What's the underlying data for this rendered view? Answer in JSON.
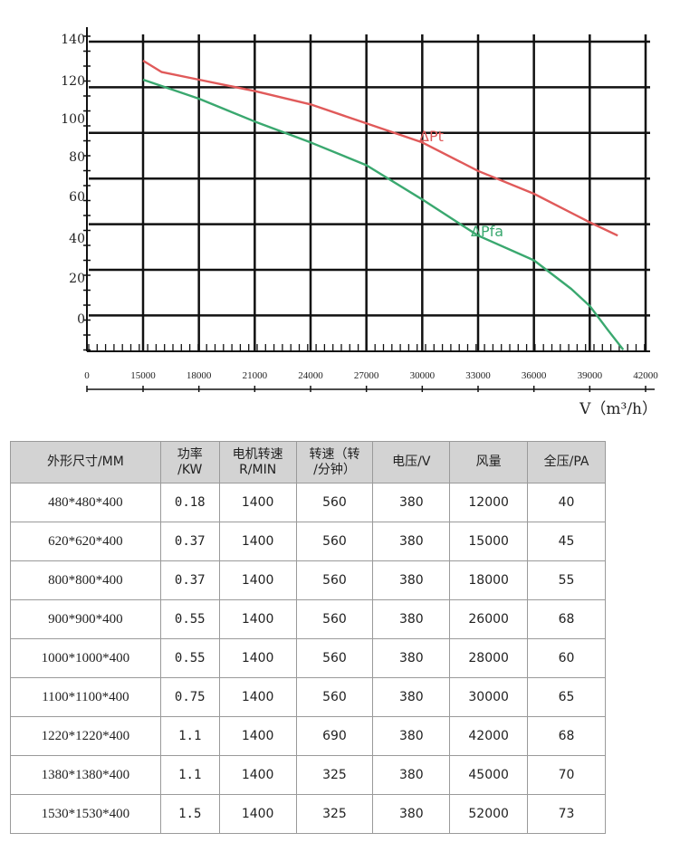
{
  "chart_data": {
    "type": "line",
    "xlabel": "V（m³/h）",
    "x_ticks": [
      "0",
      "15000",
      "18000",
      "21000",
      "24000",
      "27000",
      "30000",
      "33000",
      "36000",
      "39000",
      "42000"
    ],
    "y_ticks": [
      "140",
      "120",
      "100",
      "80",
      "60",
      "40",
      "20",
      "0"
    ],
    "series": [
      {
        "name": "ΔPt",
        "color": "#e05a5a",
        "points": [
          [
            15000,
            130
          ],
          [
            16000,
            124
          ],
          [
            18000,
            120
          ],
          [
            21000,
            114
          ],
          [
            24000,
            107
          ],
          [
            27000,
            97
          ],
          [
            30000,
            87
          ],
          [
            33000,
            72
          ],
          [
            36000,
            60
          ],
          [
            39000,
            45
          ],
          [
            40500,
            38
          ]
        ]
      },
      {
        "name": "ΔPfa",
        "color": "#3aa86f",
        "points": [
          [
            15000,
            120
          ],
          [
            18000,
            110
          ],
          [
            21000,
            98
          ],
          [
            24000,
            87
          ],
          [
            27000,
            75
          ],
          [
            30000,
            57
          ],
          [
            33000,
            38
          ],
          [
            36000,
            25
          ],
          [
            38000,
            10
          ],
          [
            39000,
            1
          ],
          [
            40000,
            -12
          ],
          [
            40800,
            -22
          ]
        ]
      }
    ],
    "xlim": [
      15000,
      42000
    ],
    "ylim": [
      -22,
      145
    ],
    "grid": true
  },
  "table": {
    "headers": [
      [
        "外形尺寸/MM"
      ],
      [
        "功率",
        "/KW"
      ],
      [
        "电机转速",
        "R/MIN"
      ],
      [
        "转速（转",
        "/分钟）"
      ],
      [
        "电压/V"
      ],
      [
        "风量"
      ],
      [
        "全压/PA"
      ]
    ],
    "rows": [
      [
        "480*480*400",
        "0.18",
        "1400",
        "560",
        "380",
        "12000",
        "40"
      ],
      [
        "620*620*400",
        "0.37",
        "1400",
        "560",
        "380",
        "15000",
        "45"
      ],
      [
        "800*800*400",
        "0.37",
        "1400",
        "560",
        "380",
        "18000",
        "55"
      ],
      [
        "900*900*400",
        "0.55",
        "1400",
        "560",
        "380",
        "26000",
        "68"
      ],
      [
        "1000*1000*400",
        "0.55",
        "1400",
        "560",
        "380",
        "28000",
        "60"
      ],
      [
        "1100*1100*400",
        "0.75",
        "1400",
        "560",
        "380",
        "30000",
        "65"
      ],
      [
        "1220*1220*400",
        "1.1",
        "1400",
        "690",
        "380",
        "42000",
        "68"
      ],
      [
        "1380*1380*400",
        "1.1",
        "1400",
        "325",
        "380",
        "45000",
        "70"
      ],
      [
        "1530*1530*400",
        "1.5",
        "1400",
        "325",
        "380",
        "52000",
        "73"
      ]
    ]
  }
}
